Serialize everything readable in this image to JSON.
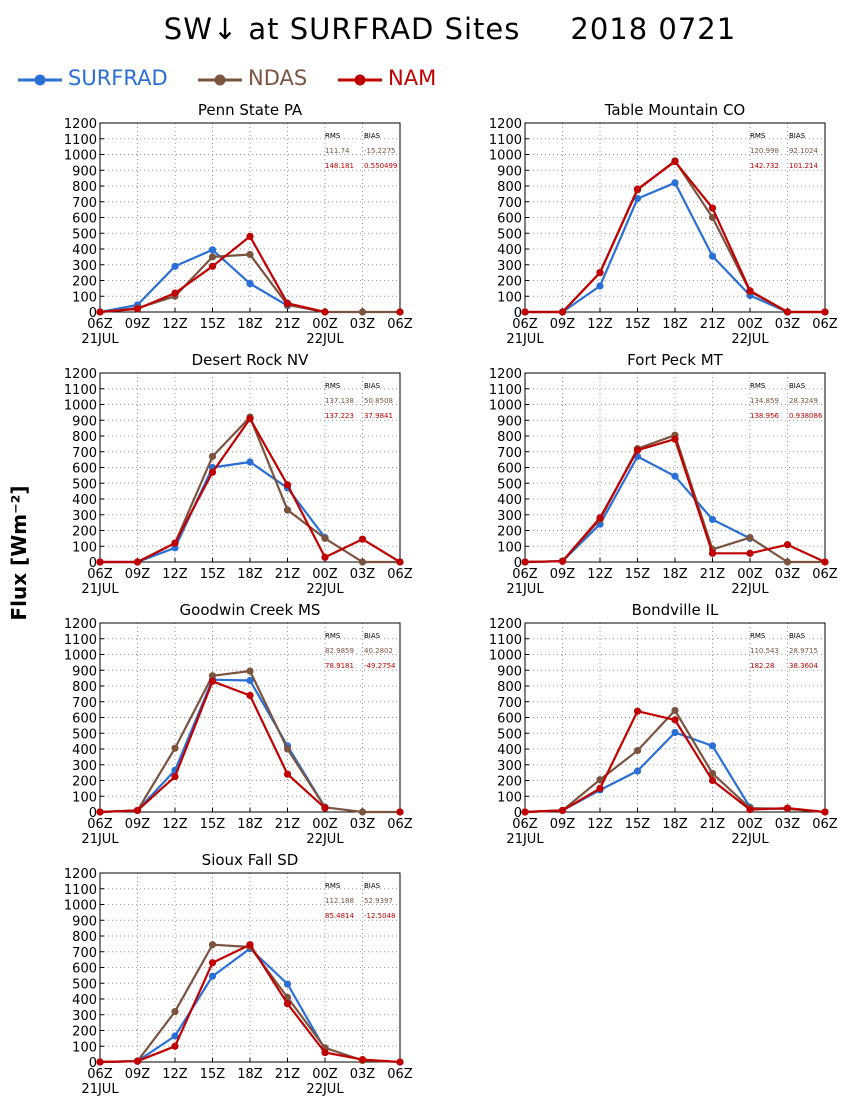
{
  "title": {
    "variable": "SW↓ at SURFRAD Sites",
    "date": "2018 0721"
  },
  "legend": [
    {
      "name": "SURFRAD",
      "color": "#2a6fd6"
    },
    {
      "name": "NDAS",
      "color": "#7b5440"
    },
    {
      "name": "NAM",
      "color": "#c00000"
    }
  ],
  "y_axis_label": "Flux [Wm⁻²]",
  "stats_headers": {
    "rms": "RMS",
    "bias": "BIAS"
  },
  "chart_data": [
    {
      "type": "line",
      "title": "Penn State PA",
      "categories": [
        "06Z",
        "09Z",
        "12Z",
        "15Z",
        "18Z",
        "21Z",
        "00Z",
        "03Z",
        "06Z"
      ],
      "date_labels": [
        "21JUL",
        "22JUL"
      ],
      "ylim": [
        0,
        1200
      ],
      "yticks": [
        0,
        100,
        200,
        300,
        400,
        500,
        600,
        700,
        800,
        900,
        1000,
        1100,
        1200
      ],
      "grid": true,
      "series": [
        {
          "name": "SURFRAD",
          "values": [
            0,
            45,
            290,
            395,
            180,
            40,
            null,
            null,
            null
          ]
        },
        {
          "name": "NDAS",
          "values": [
            0,
            25,
            100,
            350,
            365,
            45,
            0,
            0,
            0
          ]
        },
        {
          "name": "NAM",
          "values": [
            0,
            20,
            120,
            290,
            480,
            55,
            0,
            null,
            0
          ]
        }
      ],
      "stats": {
        "ndas": {
          "rms": "111.74",
          "bias": "-15.2275"
        },
        "nam": {
          "rms": "148.181",
          "bias": "0.550499"
        }
      }
    },
    {
      "type": "line",
      "title": "Table Mountain CO",
      "categories": [
        "06Z",
        "09Z",
        "12Z",
        "15Z",
        "18Z",
        "21Z",
        "00Z",
        "03Z",
        "06Z"
      ],
      "date_labels": [
        "21JUL",
        "22JUL"
      ],
      "ylim": [
        0,
        1200
      ],
      "yticks": [
        0,
        100,
        200,
        300,
        400,
        500,
        600,
        700,
        800,
        900,
        1000,
        1100,
        1200
      ],
      "grid": true,
      "series": [
        {
          "name": "SURFRAD",
          "values": [
            0,
            0,
            165,
            720,
            820,
            355,
            105,
            0,
            0
          ]
        },
        {
          "name": "NDAS",
          "values": [
            0,
            0,
            250,
            775,
            960,
            600,
            130,
            0,
            0
          ]
        },
        {
          "name": "NAM",
          "values": [
            0,
            0,
            250,
            780,
            955,
            660,
            135,
            0,
            0
          ]
        }
      ],
      "stats": {
        "ndas": {
          "rms": "120.998",
          "bias": "92.1024"
        },
        "nam": {
          "rms": "142.732",
          "bias": "101.214"
        }
      }
    },
    {
      "type": "line",
      "title": "Desert Rock NV",
      "categories": [
        "06Z",
        "09Z",
        "12Z",
        "15Z",
        "18Z",
        "21Z",
        "00Z",
        "03Z",
        "06Z"
      ],
      "date_labels": [
        "21JUL",
        "22JUL"
      ],
      "ylim": [
        0,
        1200
      ],
      "yticks": [
        0,
        100,
        200,
        300,
        400,
        500,
        600,
        700,
        800,
        900,
        1000,
        1100,
        1200
      ],
      "grid": true,
      "series": [
        {
          "name": "SURFRAD",
          "values": [
            0,
            0,
            90,
            600,
            635,
            470,
            155,
            null,
            null
          ]
        },
        {
          "name": "NDAS",
          "values": [
            0,
            0,
            120,
            670,
            920,
            330,
            150,
            0,
            0
          ]
        },
        {
          "name": "NAM",
          "values": [
            0,
            0,
            120,
            570,
            910,
            490,
            30,
            145,
            0
          ]
        }
      ],
      "stats": {
        "ndas": {
          "rms": "137.138",
          "bias": "50.8508"
        },
        "nam": {
          "rms": "137.223",
          "bias": "37.9841"
        }
      }
    },
    {
      "type": "line",
      "title": "Fort Peck MT",
      "categories": [
        "06Z",
        "09Z",
        "12Z",
        "15Z",
        "18Z",
        "21Z",
        "00Z",
        "03Z",
        "06Z"
      ],
      "date_labels": [
        "21JUL",
        "22JUL"
      ],
      "ylim": [
        0,
        1200
      ],
      "yticks": [
        0,
        100,
        200,
        300,
        400,
        500,
        600,
        700,
        800,
        900,
        1000,
        1100,
        1200
      ],
      "grid": true,
      "series": [
        {
          "name": "SURFRAD",
          "values": [
            0,
            5,
            240,
            670,
            545,
            270,
            150,
            null,
            null
          ]
        },
        {
          "name": "NDAS",
          "values": [
            0,
            5,
            270,
            720,
            805,
            80,
            155,
            0,
            0
          ]
        },
        {
          "name": "NAM",
          "values": [
            0,
            5,
            280,
            710,
            780,
            55,
            55,
            110,
            0
          ]
        }
      ],
      "stats": {
        "ndas": {
          "rms": "134.859",
          "bias": "28.3249"
        },
        "nam": {
          "rms": "138.956",
          "bias": "0.938086"
        }
      }
    },
    {
      "type": "line",
      "title": "Goodwin Creek MS",
      "categories": [
        "06Z",
        "09Z",
        "12Z",
        "15Z",
        "18Z",
        "21Z",
        "00Z",
        "03Z",
        "06Z"
      ],
      "date_labels": [
        "21JUL",
        "22JUL"
      ],
      "ylim": [
        0,
        1200
      ],
      "yticks": [
        0,
        100,
        200,
        300,
        400,
        500,
        600,
        700,
        800,
        900,
        1000,
        1100,
        1200
      ],
      "grid": true,
      "series": [
        {
          "name": "SURFRAD",
          "values": [
            0,
            10,
            265,
            840,
            835,
            420,
            30,
            null,
            null
          ]
        },
        {
          "name": "NDAS",
          "values": [
            0,
            10,
            405,
            865,
            895,
            400,
            30,
            0,
            0
          ]
        },
        {
          "name": "NAM",
          "values": [
            0,
            10,
            225,
            830,
            740,
            240,
            25,
            null,
            0
          ]
        }
      ],
      "stats": {
        "ndas": {
          "rms": "82.9859",
          "bias": "40.2802"
        },
        "nam": {
          "rms": "78.9181",
          "bias": "-49.2754"
        }
      }
    },
    {
      "type": "line",
      "title": "Bondville IL",
      "categories": [
        "06Z",
        "09Z",
        "12Z",
        "15Z",
        "18Z",
        "21Z",
        "00Z",
        "03Z",
        "06Z"
      ],
      "date_labels": [
        "21JUL",
        "22JUL"
      ],
      "ylim": [
        0,
        1200
      ],
      "yticks": [
        0,
        100,
        200,
        300,
        400,
        500,
        600,
        700,
        800,
        900,
        1000,
        1100,
        1200
      ],
      "grid": true,
      "series": [
        {
          "name": "SURFRAD",
          "values": [
            0,
            10,
            140,
            260,
            505,
            420,
            30,
            null,
            null
          ]
        },
        {
          "name": "NDAS",
          "values": [
            0,
            10,
            205,
            390,
            645,
            245,
            25,
            20,
            0
          ]
        },
        {
          "name": "NAM",
          "values": [
            0,
            10,
            150,
            640,
            585,
            200,
            15,
            25,
            0
          ]
        }
      ],
      "stats": {
        "ndas": {
          "rms": "110.543",
          "bias": "28.9715"
        },
        "nam": {
          "rms": "182.28",
          "bias": "38.3604"
        }
      }
    },
    {
      "type": "line",
      "title": "Sioux Fall SD",
      "categories": [
        "06Z",
        "09Z",
        "12Z",
        "15Z",
        "18Z",
        "21Z",
        "00Z",
        "03Z",
        "06Z"
      ],
      "date_labels": [
        "21JUL",
        "22JUL"
      ],
      "ylim": [
        0,
        1200
      ],
      "yticks": [
        0,
        100,
        200,
        300,
        400,
        500,
        600,
        700,
        800,
        900,
        1000,
        1100,
        1200
      ],
      "grid": true,
      "series": [
        {
          "name": "SURFRAD",
          "values": [
            0,
            5,
            165,
            545,
            720,
            495,
            80,
            null,
            null
          ]
        },
        {
          "name": "NDAS",
          "values": [
            0,
            5,
            320,
            745,
            730,
            410,
            90,
            10,
            0
          ]
        },
        {
          "name": "NAM",
          "values": [
            0,
            5,
            100,
            630,
            745,
            370,
            60,
            15,
            0
          ]
        }
      ],
      "stats": {
        "ndas": {
          "rms": "112.188",
          "bias": "52.9397"
        },
        "nam": {
          "rms": "85.4814",
          "bias": "-12.5048"
        }
      }
    }
  ]
}
